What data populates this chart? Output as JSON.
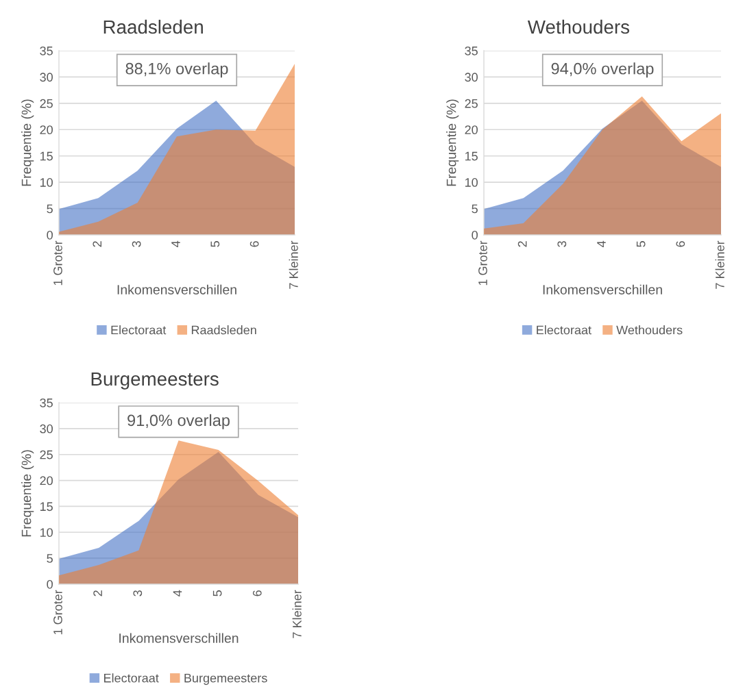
{
  "chart_data": [
    {
      "type": "area",
      "title": "Raadsleden",
      "xlabel": "Inkomensverschillen",
      "ylabel": "Frequentie (%)",
      "categories": [
        "1 Groter",
        "2",
        "3",
        "4",
        "5",
        "6",
        "7 Kleiner"
      ],
      "series": [
        {
          "name": "Electoraat",
          "color": "#8faadc",
          "values": [
            4.9,
            7.0,
            12.2,
            20.2,
            25.5,
            17.2,
            12.9
          ]
        },
        {
          "name": "Raadsleden",
          "color": "#f4b183",
          "values": [
            0.6,
            2.5,
            6.1,
            18.7,
            20.0,
            19.8,
            32.5
          ]
        }
      ],
      "ylim": [
        0,
        35
      ],
      "yticks": [
        0,
        5,
        10,
        15,
        20,
        25,
        30,
        35
      ],
      "grid": "y",
      "legend": "bottom",
      "annotations": [
        "88,1% overlap"
      ]
    },
    {
      "type": "area",
      "title": "Wethouders",
      "xlabel": "Inkomensverschillen",
      "ylabel": "Frequentie (%)",
      "categories": [
        "1 Groter",
        "2",
        "3",
        "4",
        "5",
        "6",
        "7 Kleiner"
      ],
      "series": [
        {
          "name": "Electoraat",
          "color": "#8faadc",
          "values": [
            4.9,
            7.0,
            12.2,
            20.2,
            25.5,
            17.2,
            12.9
          ]
        },
        {
          "name": "Wethouders",
          "color": "#f4b183",
          "values": [
            1.2,
            2.2,
            9.7,
            20.0,
            26.3,
            17.8,
            23.1
          ]
        }
      ],
      "ylim": [
        0,
        35
      ],
      "yticks": [
        0,
        5,
        10,
        15,
        20,
        25,
        30,
        35
      ],
      "grid": "y",
      "legend": "bottom",
      "annotations": [
        "94,0% overlap"
      ]
    },
    {
      "type": "area",
      "title": "Burgemeesters",
      "xlabel": "Inkomensverschillen",
      "ylabel": "Frequentie (%)",
      "categories": [
        "1 Groter",
        "2",
        "3",
        "4",
        "5",
        "6",
        "7 Kleiner"
      ],
      "series": [
        {
          "name": "Electoraat",
          "color": "#8faadc",
          "values": [
            4.9,
            7.0,
            12.2,
            20.2,
            25.5,
            17.2,
            12.9
          ]
        },
        {
          "name": "Burgemeesters",
          "color": "#f4b183",
          "values": [
            1.7,
            3.7,
            6.5,
            27.7,
            25.9,
            19.9,
            13.3
          ]
        }
      ],
      "ylim": [
        0,
        35
      ],
      "yticks": [
        0,
        5,
        10,
        15,
        20,
        25,
        30,
        35
      ],
      "grid": "y",
      "legend": "bottom",
      "annotations": [
        "91,0% overlap"
      ]
    }
  ]
}
